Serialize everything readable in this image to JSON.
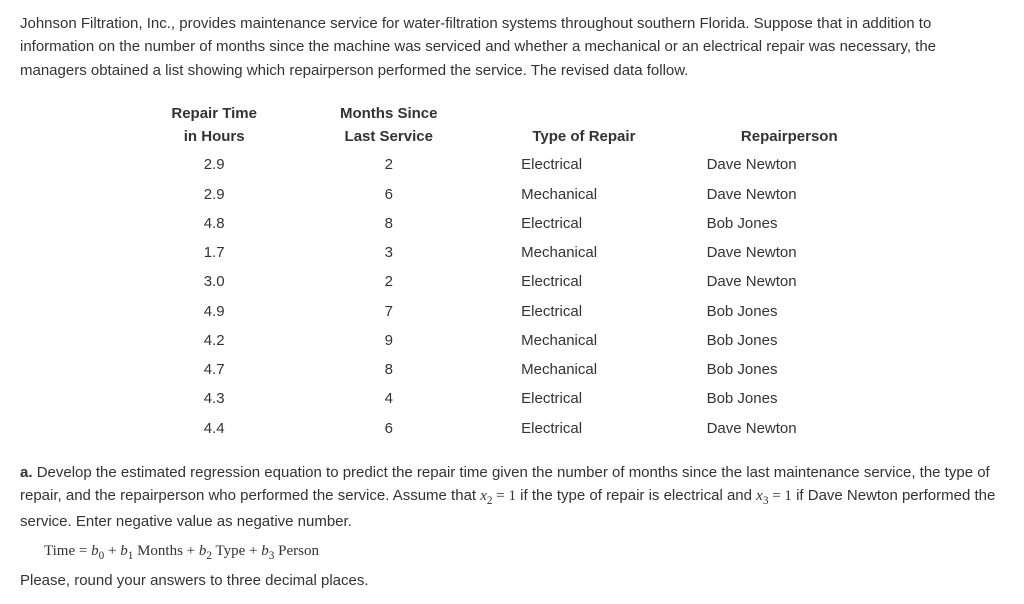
{
  "intro": "Johnson Filtration, Inc., provides maintenance service for water-filtration systems throughout southern Florida. Suppose that in addition to information on the number of months since the machine was serviced and whether a mechanical or an electrical repair was necessary, the managers obtained a list showing which repairperson performed the service. The revised data follow.",
  "headers": {
    "time_l1": "Repair Time",
    "time_l2": "in Hours",
    "months_l1": "Months Since",
    "months_l2": "Last Service",
    "type": "Type of Repair",
    "person": "Repairperson"
  },
  "rows": [
    {
      "time": "2.9",
      "months": "2",
      "type": "Electrical",
      "person": "Dave Newton"
    },
    {
      "time": "2.9",
      "months": "6",
      "type": "Mechanical",
      "person": "Dave Newton"
    },
    {
      "time": "4.8",
      "months": "8",
      "type": "Electrical",
      "person": "Bob Jones"
    },
    {
      "time": "1.7",
      "months": "3",
      "type": "Mechanical",
      "person": "Dave Newton"
    },
    {
      "time": "3.0",
      "months": "2",
      "type": "Electrical",
      "person": "Dave Newton"
    },
    {
      "time": "4.9",
      "months": "7",
      "type": "Electrical",
      "person": "Bob Jones"
    },
    {
      "time": "4.2",
      "months": "9",
      "type": "Mechanical",
      "person": "Bob Jones"
    },
    {
      "time": "4.7",
      "months": "8",
      "type": "Mechanical",
      "person": "Bob Jones"
    },
    {
      "time": "4.3",
      "months": "4",
      "type": "Electrical",
      "person": "Bob Jones"
    },
    {
      "time": "4.4",
      "months": "6",
      "type": "Electrical",
      "person": "Dave Newton"
    }
  ],
  "q": {
    "a_label": "a.",
    "a_pre": "Develop the estimated regression equation to predict the repair time given the number of months since the last maintenance service, the type of repair, and the repairperson who performed the service. Assume that ",
    "x2": "x",
    "x2sub": "2",
    "eq1": " = 1",
    "a_mid": " if the type of repair is electrical and ",
    "x3": "x",
    "x3sub": "3",
    "a_post": " if Dave Newton performed the service. Enter negative value as negative number.",
    "eq_time": "Time",
    "eq_eq": " = ",
    "b0": "b",
    "b0sub": "0",
    "plus": " + ",
    "b1": "b",
    "b1sub": "1",
    "months": " Months",
    "b2": "b",
    "b2sub": "2",
    "type": " Type",
    "b3": "b",
    "b3sub": "3",
    "person": " Person",
    "round": "Please, round your answers to three decimal places."
  }
}
